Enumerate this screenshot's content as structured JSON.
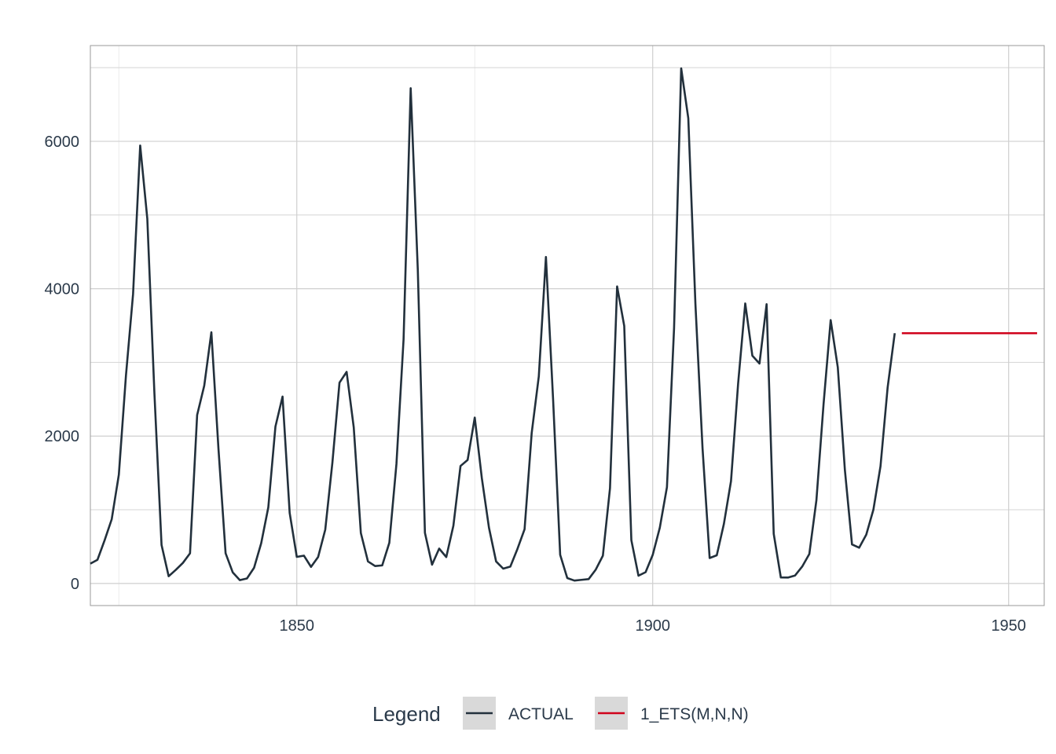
{
  "chart_data": {
    "type": "line",
    "title": "",
    "xlabel": "",
    "ylabel": "",
    "xlim": [
      1821,
      1955
    ],
    "ylim": [
      -300,
      7300
    ],
    "x_ticks": [
      1850,
      1900,
      1950
    ],
    "y_ticks": [
      0,
      2000,
      4000,
      6000
    ],
    "x_minor_ticks": [
      1825,
      1875,
      1925
    ],
    "y_minor_ticks": [
      1000,
      3000,
      5000,
      7000
    ],
    "grid": true,
    "legend": {
      "title": "Legend",
      "position": "bottom",
      "entries": [
        "ACTUAL",
        "1_ETS(M,N,N)"
      ]
    },
    "series": [
      {
        "name": "ACTUAL",
        "color": "#22303c",
        "x": [
          1821,
          1822,
          1823,
          1824,
          1825,
          1826,
          1827,
          1828,
          1829,
          1830,
          1831,
          1832,
          1833,
          1834,
          1835,
          1836,
          1837,
          1838,
          1839,
          1840,
          1841,
          1842,
          1843,
          1844,
          1845,
          1846,
          1847,
          1848,
          1849,
          1850,
          1851,
          1852,
          1853,
          1854,
          1855,
          1856,
          1857,
          1858,
          1859,
          1860,
          1861,
          1862,
          1863,
          1864,
          1865,
          1866,
          1867,
          1868,
          1869,
          1870,
          1871,
          1872,
          1873,
          1874,
          1875,
          1876,
          1877,
          1878,
          1879,
          1880,
          1881,
          1882,
          1883,
          1884,
          1885,
          1886,
          1887,
          1888,
          1889,
          1890,
          1891,
          1892,
          1893,
          1894,
          1895,
          1896,
          1897,
          1898,
          1899,
          1900,
          1901,
          1902,
          1903,
          1904,
          1905,
          1906,
          1907,
          1908,
          1909,
          1910,
          1911,
          1912,
          1913,
          1914,
          1915,
          1916,
          1917,
          1918,
          1919,
          1920,
          1921,
          1922,
          1923,
          1924,
          1925,
          1926,
          1927,
          1928,
          1929,
          1930,
          1931,
          1932,
          1933,
          1934
        ],
        "values": [
          269,
          321,
          585,
          871,
          1475,
          2821,
          3928,
          5943,
          4950,
          2577,
          523,
          98,
          184,
          279,
          409,
          2285,
          2685,
          3409,
          1824,
          409,
          151,
          45,
          68,
          213,
          546,
          1033,
          2129,
          2536,
          957,
          361,
          377,
          225,
          360,
          731,
          1638,
          2725,
          2871,
          2119,
          684,
          299,
          236,
          245,
          552,
          1623,
          3311,
          6721,
          4254,
          687,
          255,
          473,
          358,
          784,
          1594,
          1676,
          2251,
          1426,
          756,
          299,
          201,
          229,
          469,
          736,
          2042,
          2811,
          4431,
          2511,
          389,
          73,
          39,
          49,
          59,
          188,
          377,
          1292,
          4031,
          3495,
          587,
          105,
          153,
          387,
          758,
          1307,
          3465,
          6991,
          6313,
          3794,
          1836,
          345,
          382,
          808,
          1388,
          2713,
          3800,
          3091,
          2985,
          3790,
          674,
          81,
          80,
          108,
          229,
          399,
          1132,
          2432,
          3574,
          2935,
          1537,
          529,
          485,
          662,
          1000,
          1590,
          2657,
          3396
        ]
      },
      {
        "name": "1_ETS(M,N,N)",
        "color": "#d0021b",
        "x": [
          1935,
          1954
        ],
        "values": [
          3396,
          3396
        ]
      }
    ]
  }
}
